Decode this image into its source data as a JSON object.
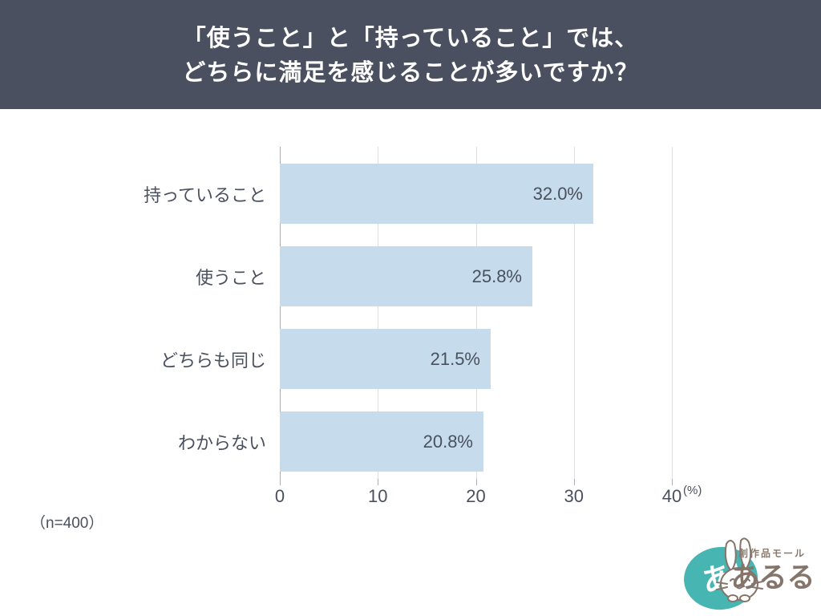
{
  "header": {
    "title_line1": "「使うこと」と「持っていること」では、",
    "title_line2": "どちらに満足を感じることが多いですか？",
    "bg_color": "#4a505f",
    "text_color": "#ffffff"
  },
  "chart_data": {
    "type": "bar",
    "orientation": "horizontal",
    "categories": [
      "持っていること",
      "使うこと",
      "どちらも同じ",
      "わからない"
    ],
    "values": [
      32.0,
      25.8,
      21.5,
      20.8
    ],
    "value_labels": [
      "32.0%",
      "25.8%",
      "21.5%",
      "20.8%"
    ],
    "xlim": [
      0,
      40
    ],
    "x_ticks": [
      0,
      10,
      20,
      30,
      40
    ],
    "x_tick_labels": [
      "0",
      "10",
      "20",
      "30",
      "40"
    ],
    "x_unit": "(%)",
    "grid": true,
    "legend": "none",
    "bar_color": "#c6dbeb",
    "gridline_color": "#dcdfe2",
    "text_color": "#49505e"
  },
  "footer": {
    "sample_note": "（n=400）"
  },
  "logo": {
    "badge_text": "あ!",
    "tagline": "創作品モール",
    "brand": "あるる",
    "badge_color": "#47b5b1",
    "brand_color": "#85746a",
    "tagline_color": "#8a796d"
  }
}
